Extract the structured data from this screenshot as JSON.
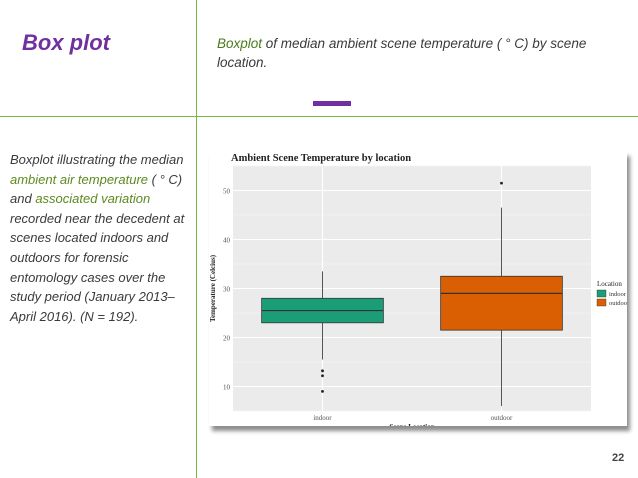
{
  "slide": {
    "title": "Box plot",
    "subtitle_pre": "Boxplot",
    "subtitle_rest": " of median ambient scene temperature ( ° C) by scene location.",
    "desc_1": "Boxplot illustrating the median ",
    "desc_2": "ambient air temperature",
    "desc_3": " ( ° C) and ",
    "desc_4": "associated variation",
    "desc_5": " recorded near the decedent at scenes located indoors and outdoors for forensic entomology cases over the study period (January 2013–April 2016). (N = 192).",
    "page_number": "22"
  },
  "chart_data": {
    "type": "box",
    "title": "Ambient Scene Temperature by location",
    "xlabel": "Scene Location",
    "ylabel": "Temperature (Celcius)",
    "categories": [
      "indoor",
      "outdoor"
    ],
    "ylim": [
      5,
      55
    ],
    "yticks": [
      10,
      20,
      30,
      40,
      50
    ],
    "legend_title": "Location",
    "legend_position": "right",
    "boxes": [
      {
        "name": "indoor",
        "whisker_low": 15.5,
        "q1": 23,
        "median": 25.5,
        "q3": 28,
        "whisker_high": 33.5,
        "outliers": [
          13.2,
          12.2,
          9
        ],
        "color": "#1b9e77"
      },
      {
        "name": "outdoor",
        "whisker_low": 6,
        "q1": 21.5,
        "median": 29,
        "q3": 32.5,
        "whisker_high": 46.5,
        "outliers": [
          51.5
        ],
        "color": "#d95f02"
      }
    ]
  }
}
